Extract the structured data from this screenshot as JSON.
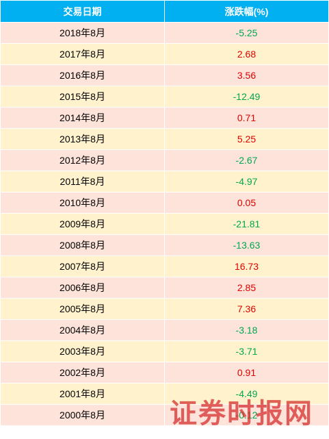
{
  "table": {
    "headers": {
      "date": "交易日期",
      "change": "涨跌幅(%)"
    },
    "rows": [
      {
        "date": "2018年8月",
        "change": "-5.25",
        "direction": "down"
      },
      {
        "date": "2017年8月",
        "change": "2.68",
        "direction": "up"
      },
      {
        "date": "2016年8月",
        "change": "3.56",
        "direction": "up"
      },
      {
        "date": "2015年8月",
        "change": "-12.49",
        "direction": "down"
      },
      {
        "date": "2014年8月",
        "change": "0.71",
        "direction": "up"
      },
      {
        "date": "2013年8月",
        "change": "5.25",
        "direction": "up"
      },
      {
        "date": "2012年8月",
        "change": "-2.67",
        "direction": "down"
      },
      {
        "date": "2011年8月",
        "change": "-4.97",
        "direction": "down"
      },
      {
        "date": "2010年8月",
        "change": "0.05",
        "direction": "up"
      },
      {
        "date": "2009年8月",
        "change": "-21.81",
        "direction": "down"
      },
      {
        "date": "2008年8月",
        "change": "-13.63",
        "direction": "down"
      },
      {
        "date": "2007年8月",
        "change": "16.73",
        "direction": "up"
      },
      {
        "date": "2006年8月",
        "change": "2.85",
        "direction": "up"
      },
      {
        "date": "2005年8月",
        "change": "7.36",
        "direction": "up"
      },
      {
        "date": "2004年8月",
        "change": "-3.18",
        "direction": "down"
      },
      {
        "date": "2003年8月",
        "change": "-3.71",
        "direction": "down"
      },
      {
        "date": "2002年8月",
        "change": "0.91",
        "direction": "up"
      },
      {
        "date": "2001年8月",
        "change": "-4.49",
        "direction": "down"
      },
      {
        "date": "2000年8月",
        "change": "-0.12",
        "direction": "down"
      }
    ]
  },
  "watermark": "证券时报网",
  "colors": {
    "header_bg": "#00b0f0",
    "row_even_bg": "#fde3d9",
    "row_odd_bg": "#fff2cc",
    "up": "#e00000",
    "down": "#00a650"
  }
}
